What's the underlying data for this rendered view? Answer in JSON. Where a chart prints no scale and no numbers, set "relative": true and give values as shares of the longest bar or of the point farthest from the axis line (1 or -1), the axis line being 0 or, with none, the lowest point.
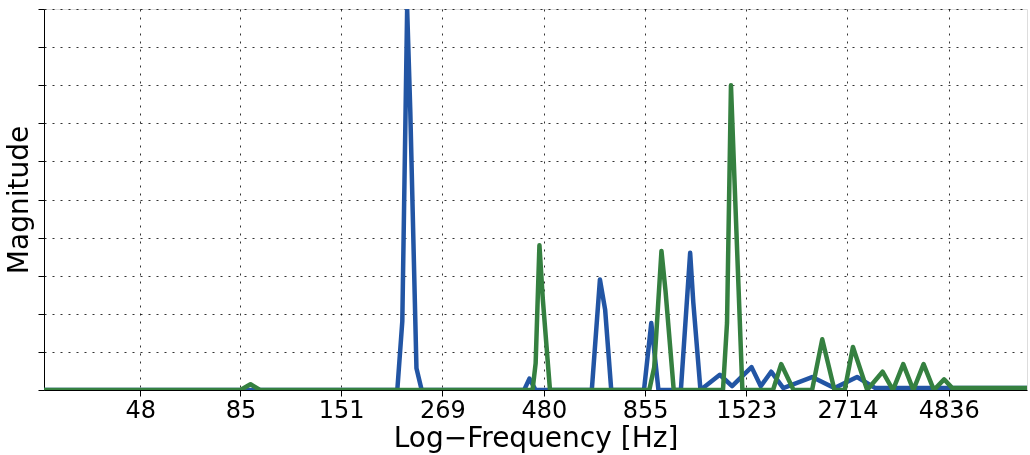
{
  "chart_data": {
    "type": "line",
    "xlabel": "Log−Frequency [Hz]",
    "ylabel": "Magnitude",
    "relative": true,
    "log": "x",
    "grid": true,
    "legend": false,
    "marker": "none",
    "line_style": "solid",
    "xlim": [
      27.7,
      7560
    ],
    "xticks": [
      48,
      85,
      151,
      269,
      480,
      855,
      1523,
      2714,
      4836
    ],
    "series": [
      {
        "color": "#2255a4",
        "x": [
          27.7,
          208,
          214,
          220,
          224,
          232,
          239,
          429,
          442,
          458,
          631,
          661,
          681,
          705,
          850,
          886,
          923,
          1049,
          1106,
          1126,
          1173,
          1310,
          1405,
          1570,
          1655,
          1756,
          1882,
          2218,
          2520,
          2867,
          3182,
          7560
        ],
        "values": [
          0,
          0,
          0.18,
          1,
          0.73,
          0.057,
          0,
          0,
          0.03,
          0,
          0,
          0.29,
          0.21,
          0,
          0,
          0.176,
          0,
          0,
          0.36,
          0.23,
          0,
          0.04,
          0.01,
          0.06,
          0.01,
          0.048,
          0.005,
          0.034,
          0.005,
          0.034,
          0.005,
          0.005
        ]
      },
      {
        "color": "#358040",
        "x": [
          27.7,
          85,
          90,
          95,
          450,
          458,
          468,
          477,
          497,
          876,
          901,
          939,
          961,
          1007,
          1334,
          1365,
          1396,
          1421,
          1490,
          1775,
          1859,
          1995,
          2218,
          2350,
          2520,
          2672,
          2800,
          3037,
          3316,
          3518,
          3731,
          3953,
          4190,
          4444,
          4710,
          4936,
          7560
        ],
        "values": [
          0,
          0,
          0.015,
          0,
          0,
          0.07,
          0.38,
          0.24,
          0,
          0,
          0.06,
          0.365,
          0.26,
          0,
          0,
          0.176,
          0.8,
          0.58,
          0,
          0,
          0.068,
          0,
          0,
          0.133,
          0,
          0,
          0.113,
          0,
          0.048,
          0,
          0.068,
          0,
          0.068,
          0,
          0.028,
          0.005,
          0.005
        ]
      }
    ]
  }
}
